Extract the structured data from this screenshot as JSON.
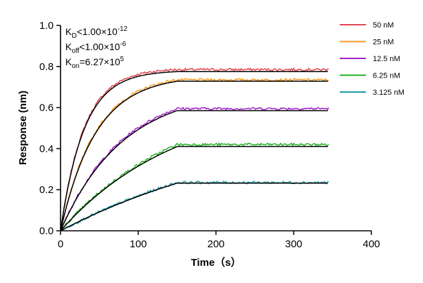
{
  "chart_data": {
    "type": "line",
    "title": "",
    "xlabel": "Time（s）",
    "ylabel": "Response (nm)",
    "xlim": [
      0,
      400
    ],
    "ylim": [
      0,
      1.0
    ],
    "x_ticks": [
      "0",
      "100",
      "200",
      "300",
      "400"
    ],
    "y_ticks": [
      "0.0",
      "0.2",
      "0.4",
      "0.6",
      "0.8",
      "1.0"
    ],
    "grid": false,
    "legend_position": "top-right",
    "annotations": {
      "kd": {
        "main": "K",
        "sub": "D",
        "rel": "<1.00×10",
        "exp": "-12"
      },
      "koff": {
        "main": "K",
        "sub": "off",
        "rel": "<1.00×10",
        "exp": "-6"
      },
      "kon": {
        "main": "K",
        "sub": "on",
        "rel": "=6.27×10",
        "exp": "5"
      }
    },
    "association_end_s": 150,
    "x_end_s": 345,
    "series": [
      {
        "name": "50 nM",
        "color": "#e0454f",
        "plateau": 0.785,
        "k_obs": 0.033,
        "fit_plateau": 0.775
      },
      {
        "name": "25 nM",
        "color": "#f29a22",
        "plateau": 0.735,
        "k_obs": 0.022,
        "fit_plateau": 0.728
      },
      {
        "name": "12.5 nM",
        "color": "#a020c8",
        "plateau": 0.595,
        "k_obs": 0.0125,
        "fit_plateau": 0.585
      },
      {
        "name": "6.25 nM",
        "color": "#22b022",
        "plateau": 0.42,
        "k_obs": 0.0065,
        "fit_plateau": 0.41
      },
      {
        "name": "3.125 nM",
        "color": "#1c9aa8",
        "plateau": 0.235,
        "k_obs": 0.0035,
        "fit_plateau": 0.232
      }
    ]
  }
}
